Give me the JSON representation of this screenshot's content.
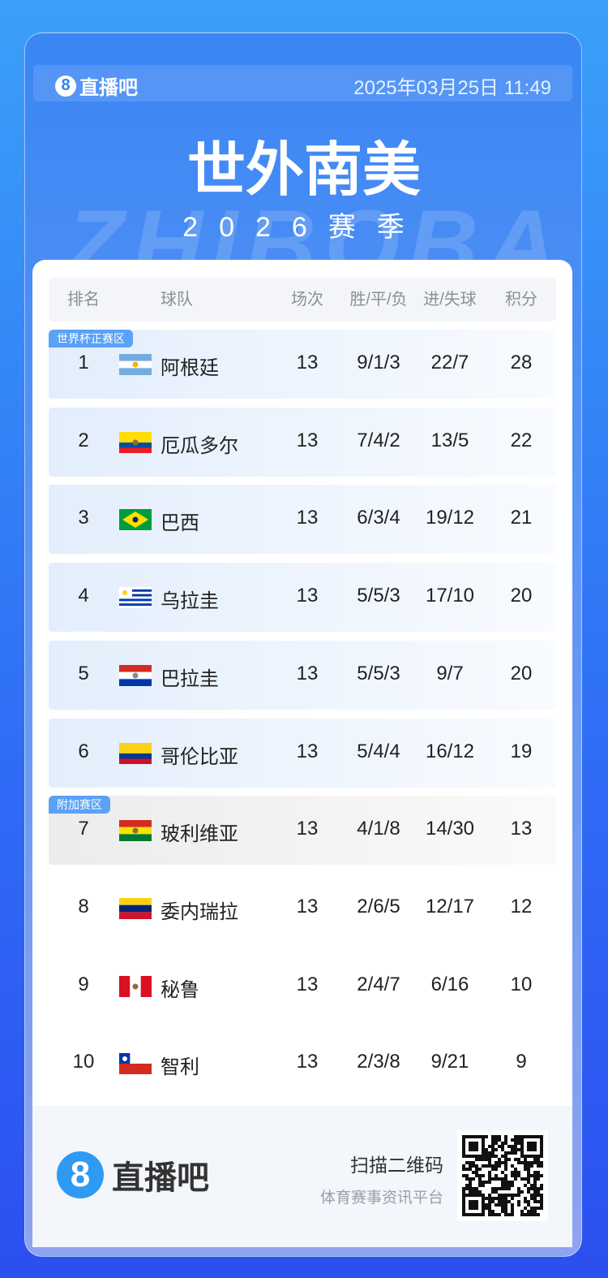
{
  "header": {
    "logo": "直播吧",
    "datetime": "2025年03月25日 11:49",
    "title": "世外南美",
    "subtitle": "2026赛季",
    "watermark": "ZHIBOBA"
  },
  "table": {
    "columns": [
      "排名",
      "球队",
      "场次",
      "胜/平/负",
      "进/失球",
      "积分"
    ],
    "zones": [
      "世界杯正赛区",
      "附加赛区"
    ],
    "rows": [
      [
        1,
        "阿根廷",
        13,
        "9/1/3",
        "22/7",
        28
      ],
      [
        2,
        "厄瓜多尔",
        13,
        "7/4/2",
        "13/5",
        22
      ],
      [
        3,
        "巴西",
        13,
        "6/3/4",
        "19/12",
        21
      ],
      [
        4,
        "乌拉圭",
        13,
        "5/5/3",
        "17/10",
        20
      ],
      [
        5,
        "巴拉圭",
        13,
        "5/5/3",
        "9/7",
        20
      ],
      [
        6,
        "哥伦比亚",
        13,
        "5/4/4",
        "16/12",
        19
      ],
      [
        7,
        "玻利维亚",
        13,
        "4/1/8",
        "14/30",
        13
      ],
      [
        8,
        "委内瑞拉",
        13,
        "2/6/5",
        "12/17",
        12
      ],
      [
        9,
        "秘鲁",
        13,
        "2/4/7",
        "6/16",
        10
      ],
      [
        10,
        "智利",
        13,
        "2/3/8",
        "9/21",
        9
      ]
    ]
  },
  "footer": {
    "logo": "直播吧",
    "scan": "扫描二维码",
    "tagline": "体育赛事资讯平台"
  }
}
